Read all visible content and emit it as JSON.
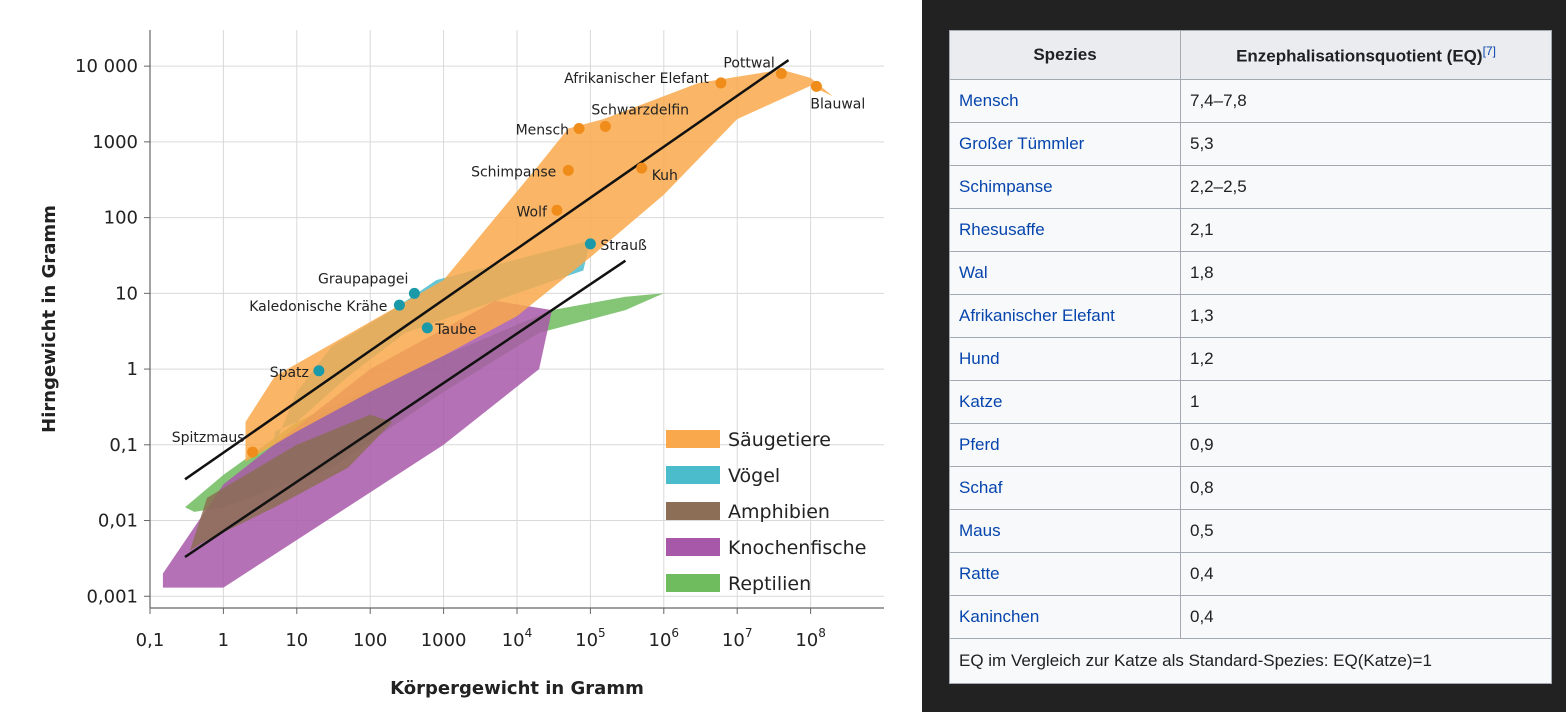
{
  "chart_data": {
    "type": "scatter",
    "title": "",
    "xlabel": "Körpergewicht in Gramm",
    "ylabel": "Hirngewicht in Gramm",
    "xscale": "log",
    "yscale": "log",
    "xlim": [
      0.1,
      1000000000
    ],
    "ylim": [
      0.0007,
      30000
    ],
    "grid": true,
    "x_tick_labels": [
      {
        "v": 0.1,
        "t": "0,1"
      },
      {
        "v": 1,
        "t": "1"
      },
      {
        "v": 10,
        "t": "10"
      },
      {
        "v": 100,
        "t": "100"
      },
      {
        "v": 1000,
        "t": "1000"
      },
      {
        "v": 10000,
        "t": "10",
        "e": "4"
      },
      {
        "v": 100000,
        "t": "10",
        "e": "5"
      },
      {
        "v": 1000000,
        "t": "10",
        "e": "6"
      },
      {
        "v": 10000000,
        "t": "10",
        "e": "7"
      },
      {
        "v": 100000000,
        "t": "10",
        "e": "8"
      }
    ],
    "y_tick_labels": [
      {
        "v": 0.001,
        "t": "0,001"
      },
      {
        "v": 0.01,
        "t": "0,01"
      },
      {
        "v": 0.1,
        "t": "0,1"
      },
      {
        "v": 1,
        "t": "1"
      },
      {
        "v": 10,
        "t": "10"
      },
      {
        "v": 100,
        "t": "100"
      },
      {
        "v": 1000,
        "t": "1000"
      },
      {
        "v": 10000,
        "t": "10 000"
      }
    ],
    "legend_position": "bottom-right",
    "legend": [
      {
        "name": "Säugetiere",
        "color": "#f9a94b"
      },
      {
        "name": "Vögel",
        "color": "#4bbccc"
      },
      {
        "name": "Amphibien",
        "color": "#8c6d55"
      },
      {
        "name": "Knochenfische",
        "color": "#a858a8"
      },
      {
        "name": "Reptilien",
        "color": "#6ebc5e"
      }
    ],
    "regions": [
      {
        "group": "Reptilien",
        "color": "#6ebc5e",
        "points": [
          [
            0.3,
            0.015
          ],
          [
            1,
            0.04
          ],
          [
            10,
            0.2
          ],
          [
            1000,
            1.5
          ],
          [
            30000,
            6
          ],
          [
            300000,
            9
          ],
          [
            1000000,
            10
          ],
          [
            300000,
            6
          ],
          [
            20000,
            3
          ],
          [
            1000,
            0.5
          ],
          [
            30,
            0.05
          ],
          [
            1,
            0.015
          ],
          [
            0.4,
            0.013
          ]
        ]
      },
      {
        "group": "Knochenfische",
        "color": "#a858a8",
        "points": [
          [
            0.15,
            0.0013
          ],
          [
            1,
            0.0013
          ],
          [
            1000,
            0.1
          ],
          [
            20000,
            1
          ],
          [
            30000,
            6
          ],
          [
            5000,
            8
          ],
          [
            100,
            1
          ],
          [
            1,
            0.03
          ],
          [
            0.15,
            0.002
          ]
        ]
      },
      {
        "group": "Amphibien",
        "color": "#8c6d55",
        "points": [
          [
            0.35,
            0.004
          ],
          [
            0.6,
            0.02
          ],
          [
            10,
            0.1
          ],
          [
            100,
            0.25
          ],
          [
            200,
            0.2
          ],
          [
            50,
            0.05
          ],
          [
            5,
            0.015
          ],
          [
            0.5,
            0.005
          ]
        ]
      },
      {
        "group": "Vögel",
        "color": "#4bbccc",
        "points": [
          [
            5,
            0.1
          ],
          [
            10,
            0.5
          ],
          [
            30,
            2
          ],
          [
            200,
            6
          ],
          [
            800,
            15
          ],
          [
            100000,
            50
          ],
          [
            80000,
            20
          ],
          [
            10000,
            10
          ],
          [
            300,
            3
          ],
          [
            50,
            0.8
          ],
          [
            10,
            0.2
          ],
          [
            5,
            0.15
          ]
        ]
      },
      {
        "group": "Säugetiere",
        "color": "#f9a94b",
        "points": [
          [
            2,
            0.06
          ],
          [
            2,
            0.2
          ],
          [
            5,
            0.8
          ],
          [
            1000,
            15
          ],
          [
            20000,
            500
          ],
          [
            50000,
            1500
          ],
          [
            150000,
            2000
          ],
          [
            3000000,
            6000
          ],
          [
            40000000,
            9000
          ],
          [
            100000000,
            7000
          ],
          [
            200000000,
            4000
          ],
          [
            100000000,
            5500
          ],
          [
            10000000,
            2000
          ],
          [
            1000000,
            200
          ],
          [
            100000,
            30
          ],
          [
            10000,
            5
          ],
          [
            1000,
            1.5
          ],
          [
            100,
            0.5
          ],
          [
            10,
            0.15
          ]
        ]
      }
    ],
    "trend_lines": [
      {
        "from": [
          0.3,
          0.035
        ],
        "to": [
          50000000,
          12000
        ]
      },
      {
        "from": [
          0.3,
          0.0033
        ],
        "to": [
          300000,
          27
        ]
      }
    ],
    "points": [
      {
        "label": "Pottwal",
        "x": 40000000,
        "y": 8000,
        "group": "Säugetiere"
      },
      {
        "label": "Blauwal",
        "x": 120000000,
        "y": 5400,
        "group": "Säugetiere"
      },
      {
        "label": "Afrikanischer Elefant",
        "x": 6000000,
        "y": 6000,
        "group": "Säugetiere"
      },
      {
        "label": "Schwarzdelfin",
        "x": 160000,
        "y": 1600,
        "group": "Säugetiere"
      },
      {
        "label": "Mensch",
        "x": 70000,
        "y": 1500,
        "group": "Säugetiere"
      },
      {
        "label": "Schimpanse",
        "x": 50000,
        "y": 420,
        "group": "Säugetiere"
      },
      {
        "label": "Kuh",
        "x": 500000,
        "y": 450,
        "group": "Säugetiere"
      },
      {
        "label": "Wolf",
        "x": 35000,
        "y": 125,
        "group": "Säugetiere"
      },
      {
        "label": "Spitzmaus",
        "x": 2.5,
        "y": 0.08,
        "group": "Säugetiere"
      },
      {
        "label": "Strauß",
        "x": 100000,
        "y": 45,
        "group": "Vögel"
      },
      {
        "label": "Graupapagei",
        "x": 400,
        "y": 10,
        "group": "Vögel"
      },
      {
        "label": "Kaledonische Krähe",
        "x": 250,
        "y": 7,
        "group": "Vögel"
      },
      {
        "label": "Taube",
        "x": 600,
        "y": 3.5,
        "group": "Vögel"
      },
      {
        "label": "Spatz",
        "x": 20,
        "y": 0.95,
        "group": "Vögel"
      }
    ]
  },
  "table": {
    "header_species": "Spezies",
    "header_eq": "Enzephalisationsquotient (EQ)",
    "header_ref": "[7]",
    "rows": [
      {
        "species": "Mensch",
        "eq": "7,4–7,8"
      },
      {
        "species": "Großer Tümmler",
        "eq": "5,3"
      },
      {
        "species": "Schimpanse",
        "eq": "2,2–2,5"
      },
      {
        "species": "Rhesusaffe",
        "eq": "2,1"
      },
      {
        "species": "Wal",
        "eq": "1,8"
      },
      {
        "species": "Afrikanischer Elefant",
        "eq": "1,3"
      },
      {
        "species": "Hund",
        "eq": "1,2"
      },
      {
        "species": "Katze",
        "eq": "1"
      },
      {
        "species": "Pferd",
        "eq": "0,9"
      },
      {
        "species": "Schaf",
        "eq": "0,8"
      },
      {
        "species": "Maus",
        "eq": "0,5"
      },
      {
        "species": "Ratte",
        "eq": "0,4"
      },
      {
        "species": "Kaninchen",
        "eq": "0,4"
      }
    ],
    "footer": "EQ im Vergleich zur Katze als Standard-Spezies: EQ(Katze)=1"
  },
  "colors": {
    "link": "#0645ad",
    "point_mammal": "#f08c1a",
    "point_bird": "#1a9aa8",
    "frame": "#222222"
  }
}
